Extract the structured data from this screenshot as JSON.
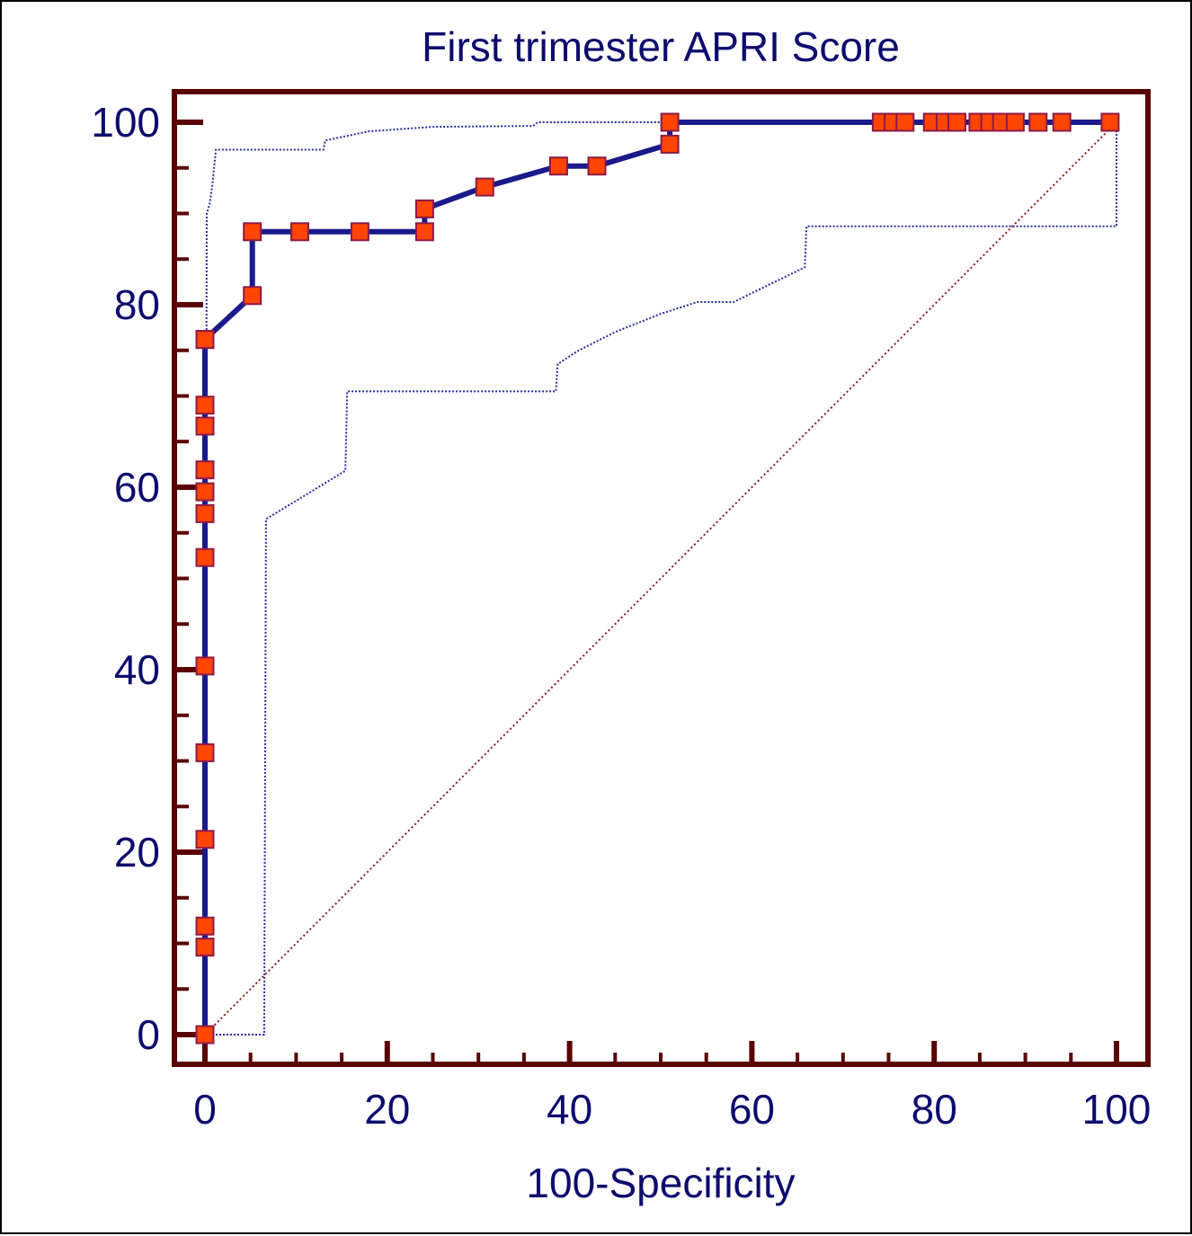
{
  "chart_data": {
    "type": "line",
    "title": "First trimester APRI Score",
    "xlabel": "100-Specificity",
    "ylabel": "",
    "xlim": [
      0,
      100
    ],
    "ylim": [
      0,
      100
    ],
    "x_ticks": [
      "0",
      "20",
      "40",
      "60",
      "80",
      "100"
    ],
    "y_ticks": [
      "0",
      "20",
      "40",
      "60",
      "80",
      "100"
    ],
    "grid": false,
    "legend": "none",
    "colors": {
      "frame": "#5a0000",
      "roc_line": "#1a1a8c",
      "marker_fill": "#ff4500",
      "marker_edge": "#8b1a4a",
      "ci_line": "#2a2aa0",
      "diagonal": "#8b1a1a",
      "text": "#0c0c6e"
    },
    "series": [
      {
        "role": "roc-curve",
        "x": [
          0,
          0,
          0,
          0,
          0,
          0,
          0,
          0,
          0,
          0,
          0,
          0,
          0,
          0,
          0,
          5.2,
          5.2,
          10.4,
          17.0,
          24.1,
          24.1,
          30.7,
          38.8,
          43.0,
          51.0,
          51.0,
          74.2,
          75.5,
          76.8,
          79.8,
          81.2,
          82.5,
          84.8,
          86.1,
          87.4,
          88.9,
          91.4,
          94.0,
          99.3
        ],
        "y": [
          0,
          9.6,
          11.9,
          21.4,
          30.9,
          40.4,
          52.3,
          57.1,
          59.5,
          61.9,
          66.7,
          69.0,
          76.2,
          76.2,
          76.2,
          81.0,
          88.0,
          88.0,
          88.0,
          88.0,
          90.5,
          92.9,
          95.2,
          95.2,
          97.6,
          100,
          100,
          100,
          100,
          100,
          100,
          100,
          100,
          100,
          100,
          100,
          100,
          100,
          100
        ],
        "markers": true
      },
      {
        "role": "ci-upper",
        "x": [
          0,
          0.2,
          0.5,
          0.8,
          1.0,
          1.2,
          13.0,
          13.2,
          18.0,
          25.0,
          36.0,
          36.5,
          51.0,
          100
        ],
        "y": [
          0,
          90.0,
          91.0,
          93.0,
          95.0,
          97.0,
          97.0,
          98.0,
          99.0,
          99.5,
          99.6,
          100,
          100,
          100
        ]
      },
      {
        "role": "ci-lower",
        "x": [
          0,
          6.5,
          6.7,
          15.4,
          15.6,
          38.5,
          38.7,
          41.0,
          45.0,
          50.0,
          54.0,
          58.0,
          65.8,
          66.0,
          100,
          100
        ],
        "y": [
          0,
          0,
          56.5,
          61.8,
          70.5,
          70.5,
          73.5,
          75.0,
          77.0,
          79.0,
          80.3,
          80.3,
          84.1,
          88.6,
          88.6,
          100
        ]
      },
      {
        "role": "reference-diagonal",
        "x": [
          0,
          100
        ],
        "y": [
          0,
          100
        ]
      }
    ]
  }
}
